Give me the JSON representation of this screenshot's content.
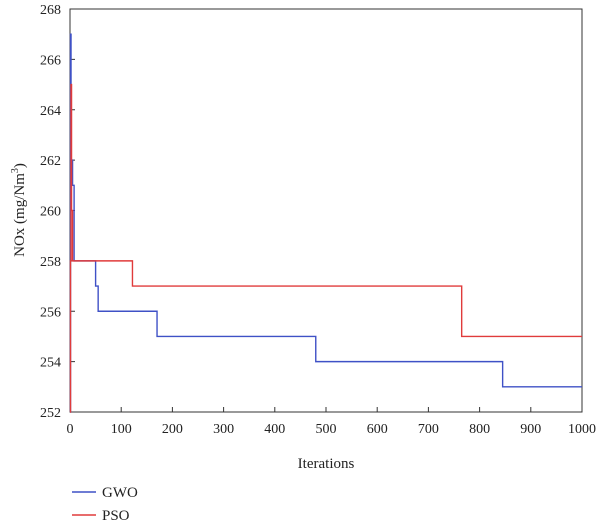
{
  "chart_data": {
    "type": "line",
    "title": "",
    "xlabel": "Iterations",
    "ylabel_main": "NOx (mg/Nm",
    "ylabel_sup": "3",
    "ylabel_end": ")",
    "xlim": [
      0,
      1000
    ],
    "ylim": [
      252,
      268
    ],
    "xticks": [
      0,
      100,
      200,
      300,
      400,
      500,
      600,
      700,
      800,
      900,
      1000
    ],
    "yticks": [
      252,
      254,
      256,
      258,
      260,
      262,
      264,
      266,
      268
    ],
    "grid": false,
    "legend_position": "bottom-left",
    "series": [
      {
        "name": "GWO",
        "color": "#3f51c6",
        "step": true,
        "x": [
          0,
          1,
          2,
          3,
          4,
          5,
          6,
          8,
          10,
          50,
          55,
          57,
          170,
          480,
          845,
          1000
        ],
        "y": [
          252,
          267,
          262,
          262,
          262,
          261,
          261,
          258,
          258,
          257,
          256,
          256,
          255,
          254,
          253,
          253
        ]
      },
      {
        "name": "PSO",
        "color": "#e03b3b",
        "step": true,
        "x": [
          0,
          1,
          2,
          3,
          5,
          8,
          122,
          765,
          1000
        ],
        "y": [
          252,
          258,
          265,
          260,
          258,
          258,
          257,
          255,
          255
        ]
      }
    ]
  }
}
